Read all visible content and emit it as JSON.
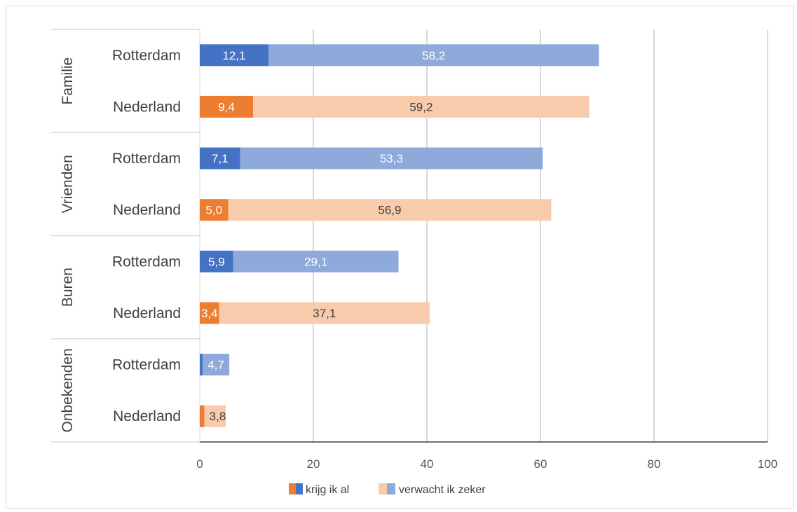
{
  "chart_data": {
    "type": "bar",
    "orientation": "horizontal",
    "stacked": true,
    "title": "",
    "xlabel": "",
    "ylabel": "",
    "xlim": [
      0,
      100
    ],
    "x_ticks": [
      "0",
      "20",
      "40",
      "60",
      "80",
      "100"
    ],
    "grid": true,
    "legend_position": "bottom",
    "groups": [
      "Familie",
      "Vrienden",
      "Buren",
      "Onbekenden"
    ],
    "categories": [
      {
        "group": "Familie",
        "label": "Rotterdam"
      },
      {
        "group": "Familie",
        "label": "Nederland"
      },
      {
        "group": "Vrienden",
        "label": "Rotterdam"
      },
      {
        "group": "Vrienden",
        "label": "Nederland"
      },
      {
        "group": "Buren",
        "label": "Rotterdam"
      },
      {
        "group": "Buren",
        "label": "Nederland"
      },
      {
        "group": "Onbekenden",
        "label": "Rotterdam"
      },
      {
        "group": "Onbekenden",
        "label": "Nederland"
      }
    ],
    "series": [
      {
        "name": "krijg ik al",
        "values": [
          12.1,
          9.4,
          7.1,
          5.0,
          5.9,
          3.4,
          0.5,
          0.8
        ],
        "data_labels": [
          "12,1",
          "9,4",
          "7,1",
          "5,0",
          "5,9",
          "3,4",
          "",
          ""
        ]
      },
      {
        "name": "verwacht ik zeker",
        "values": [
          58.2,
          59.2,
          53.3,
          56.9,
          29.1,
          37.1,
          4.7,
          3.8
        ],
        "data_labels": [
          "58,2",
          "59,2",
          "53,3",
          "56,9",
          "29,1",
          "37,1",
          "4,7",
          "3,8"
        ]
      }
    ],
    "colors": {
      "rotterdam_dark": "#4472c4",
      "rotterdam_light": "#8eaadb",
      "nederland_dark": "#ed7d31",
      "nederland_light": "#f8cbad"
    }
  }
}
